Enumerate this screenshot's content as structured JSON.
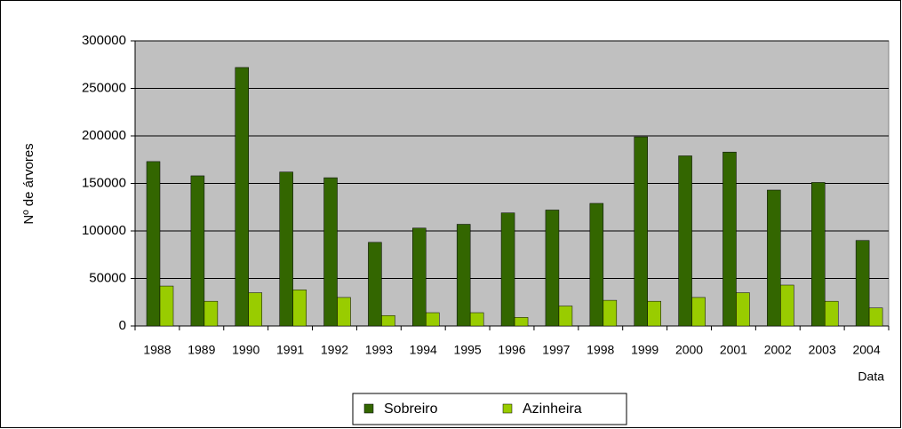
{
  "chart_data": {
    "type": "bar",
    "y_label": "Nº de árvores",
    "x_label": "Data",
    "categories": [
      "1988",
      "1989",
      "1990",
      "1991",
      "1992",
      "1993",
      "1994",
      "1995",
      "1996",
      "1997",
      "1998",
      "1999",
      "2000",
      "2001",
      "2002",
      "2003",
      "2004"
    ],
    "series": [
      {
        "name": "Sobreiro",
        "color": "#336600",
        "values": [
          173000,
          158000,
          272000,
          162000,
          156000,
          88000,
          103000,
          107000,
          119000,
          122000,
          129000,
          199000,
          179000,
          183000,
          143000,
          151000,
          90000
        ]
      },
      {
        "name": "Azinheira",
        "color": "#99cc00",
        "values": [
          42000,
          26000,
          35000,
          38000,
          30000,
          11000,
          14000,
          14000,
          9000,
          21000,
          27000,
          26000,
          30000,
          35000,
          43000,
          26000,
          19000
        ]
      }
    ],
    "ylim": [
      0,
      300000
    ],
    "yticks": [
      0,
      50000,
      100000,
      150000,
      200000,
      250000,
      300000
    ],
    "grid": true,
    "plot_background": "#c0c0c0",
    "legend": "bottom"
  }
}
